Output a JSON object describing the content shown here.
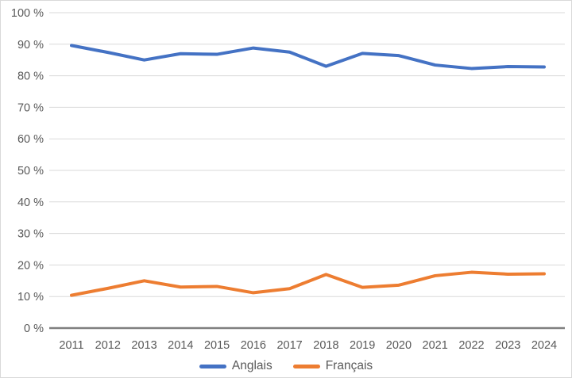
{
  "chart_data": {
    "type": "line",
    "categories": [
      "2011",
      "2012",
      "2013",
      "2014",
      "2015",
      "2016",
      "2017",
      "2018",
      "2019",
      "2020",
      "2021",
      "2022",
      "2023",
      "2024"
    ],
    "series": [
      {
        "name": "Anglais",
        "color": "#4472C4",
        "values": [
          89.6,
          87.4,
          85.0,
          87.0,
          86.8,
          88.8,
          87.5,
          83.0,
          87.1,
          86.4,
          83.4,
          82.3,
          82.9,
          82.8
        ]
      },
      {
        "name": "Français",
        "color": "#ED7D31",
        "values": [
          10.4,
          12.6,
          15.0,
          13.0,
          13.2,
          11.2,
          12.5,
          17.0,
          12.9,
          13.6,
          16.6,
          17.7,
          17.1,
          17.2
        ]
      }
    ],
    "title": "",
    "xlabel": "",
    "ylabel": "",
    "ylim": [
      0,
      100
    ],
    "yticks": [
      0,
      10,
      20,
      30,
      40,
      50,
      60,
      70,
      80,
      90,
      100
    ],
    "ytick_suffix": " %",
    "grid": "horizontal",
    "legend_position": "bottom-center",
    "colors": {
      "axis_text": "#595959",
      "gridline": "#d9d9d9",
      "axis_line": "#808080",
      "frame_border": "#d9d9d9",
      "background": "#ffffff"
    }
  }
}
